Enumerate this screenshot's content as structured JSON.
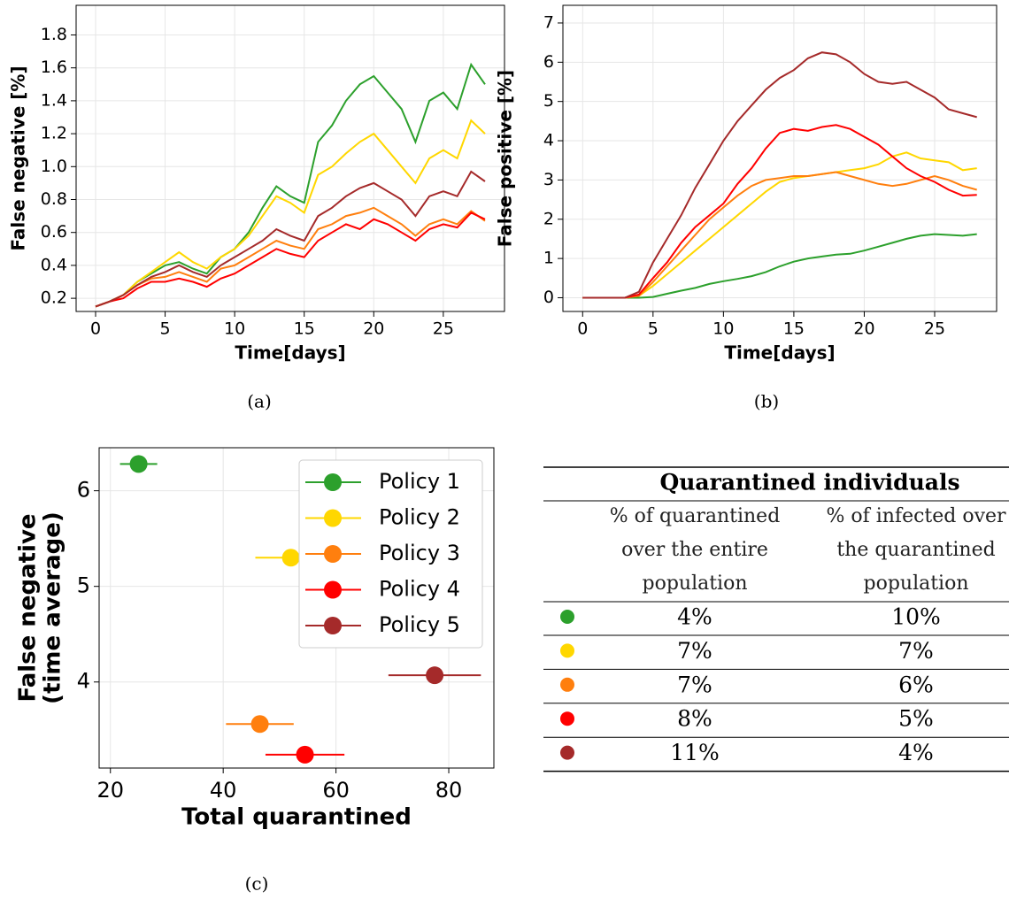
{
  "chart_data": [
    {
      "type": "line",
      "caption": "(a)",
      "xlabel": "Time[days]",
      "ylabel": "False negative [%]",
      "grid": true,
      "x": [
        0,
        1,
        2,
        3,
        4,
        5,
        6,
        7,
        8,
        9,
        10,
        11,
        12,
        13,
        14,
        15,
        16,
        17,
        18,
        19,
        20,
        21,
        22,
        23,
        24,
        25,
        26,
        27,
        28
      ],
      "xlim": [
        -1.4,
        29.4
      ],
      "xticks": [
        0,
        5,
        10,
        15,
        20,
        25
      ],
      "ylim": [
        0.12,
        1.98
      ],
      "yticks": [
        0.2,
        0.4,
        0.6,
        0.8,
        {
          "value": 1,
          "label": "1.0"
        },
        1.2,
        1.4,
        1.6,
        1.8
      ],
      "series": [
        {
          "color": "#2ca02c",
          "values": [
            0.15,
            0.18,
            0.22,
            0.3,
            0.35,
            0.4,
            0.42,
            0.38,
            0.35,
            0.45,
            0.5,
            0.6,
            0.75,
            0.88,
            0.82,
            0.78,
            1.15,
            1.25,
            1.4,
            1.5,
            1.55,
            1.45,
            1.35,
            1.15,
            1.4,
            1.45,
            1.35,
            1.62,
            1.5
          ]
        },
        {
          "color": "#ffd700",
          "values": [
            0.15,
            0.18,
            0.22,
            0.3,
            0.36,
            0.42,
            0.48,
            0.42,
            0.38,
            0.45,
            0.5,
            0.58,
            0.7,
            0.82,
            0.78,
            0.72,
            0.95,
            1.0,
            1.08,
            1.15,
            1.2,
            1.1,
            1.0,
            0.9,
            1.05,
            1.1,
            1.05,
            1.28,
            1.2
          ]
        },
        {
          "color": "#ff7f0e",
          "values": [
            0.15,
            0.18,
            0.22,
            0.28,
            0.32,
            0.33,
            0.36,
            0.33,
            0.3,
            0.38,
            0.4,
            0.45,
            0.5,
            0.55,
            0.52,
            0.5,
            0.62,
            0.65,
            0.7,
            0.72,
            0.75,
            0.7,
            0.65,
            0.58,
            0.65,
            0.68,
            0.65,
            0.73,
            0.67
          ]
        },
        {
          "color": "#ff0000",
          "values": [
            0.15,
            0.18,
            0.2,
            0.26,
            0.3,
            0.3,
            0.32,
            0.3,
            0.27,
            0.32,
            0.35,
            0.4,
            0.45,
            0.5,
            0.47,
            0.45,
            0.55,
            0.6,
            0.65,
            0.62,
            0.68,
            0.65,
            0.6,
            0.55,
            0.62,
            0.65,
            0.63,
            0.72,
            0.68
          ]
        },
        {
          "color": "#a52a2a",
          "values": [
            0.15,
            0.18,
            0.22,
            0.28,
            0.33,
            0.36,
            0.4,
            0.36,
            0.33,
            0.4,
            0.45,
            0.5,
            0.55,
            0.62,
            0.58,
            0.55,
            0.7,
            0.75,
            0.82,
            0.87,
            0.9,
            0.85,
            0.8,
            0.7,
            0.82,
            0.85,
            0.82,
            0.97,
            0.91
          ]
        }
      ]
    },
    {
      "type": "line",
      "caption": "(b)",
      "xlabel": "Time[days]",
      "ylabel": "False positive [%]",
      "grid": true,
      "x": [
        0,
        1,
        2,
        3,
        4,
        5,
        6,
        7,
        8,
        9,
        10,
        11,
        12,
        13,
        14,
        15,
        16,
        17,
        18,
        19,
        20,
        21,
        22,
        23,
        24,
        25,
        26,
        27,
        28
      ],
      "xlim": [
        -1.4,
        29.4
      ],
      "xticks": [
        0,
        5,
        10,
        15,
        20,
        25
      ],
      "ylim": [
        -0.35,
        7.45
      ],
      "yticks": [
        0,
        1,
        2,
        3,
        4,
        5,
        6,
        7
      ],
      "series": [
        {
          "color": "#2ca02c",
          "values": [
            0,
            0,
            0,
            0,
            0,
            0.02,
            0.1,
            0.18,
            0.25,
            0.35,
            0.42,
            0.48,
            0.55,
            0.65,
            0.8,
            0.92,
            1.0,
            1.05,
            1.1,
            1.12,
            1.2,
            1.3,
            1.4,
            1.5,
            1.58,
            1.62,
            1.6,
            1.58,
            1.62
          ]
        },
        {
          "color": "#ffd700",
          "values": [
            0,
            0,
            0,
            0,
            0.05,
            0.3,
            0.6,
            0.9,
            1.2,
            1.5,
            1.8,
            2.1,
            2.4,
            2.7,
            2.95,
            3.05,
            3.1,
            3.15,
            3.2,
            3.25,
            3.3,
            3.4,
            3.6,
            3.7,
            3.55,
            3.5,
            3.45,
            3.25,
            3.3
          ]
        },
        {
          "color": "#ff7f0e",
          "values": [
            0,
            0,
            0,
            0,
            0.05,
            0.4,
            0.8,
            1.2,
            1.6,
            2.0,
            2.3,
            2.6,
            2.85,
            3.0,
            3.05,
            3.1,
            3.1,
            3.15,
            3.2,
            3.1,
            3.0,
            2.9,
            2.85,
            2.9,
            3.0,
            3.1,
            3.0,
            2.85,
            2.75
          ]
        },
        {
          "color": "#ff0000",
          "values": [
            0,
            0,
            0,
            0,
            0.08,
            0.5,
            0.9,
            1.4,
            1.8,
            2.1,
            2.4,
            2.9,
            3.3,
            3.8,
            4.2,
            4.3,
            4.25,
            4.35,
            4.4,
            4.3,
            4.1,
            3.9,
            3.6,
            3.3,
            3.1,
            2.95,
            2.75,
            2.6,
            2.62
          ]
        },
        {
          "color": "#a52a2a",
          "values": [
            0,
            0,
            0,
            0,
            0.15,
            0.9,
            1.5,
            2.1,
            2.8,
            3.4,
            4.0,
            4.5,
            4.9,
            5.3,
            5.6,
            5.8,
            6.1,
            6.25,
            6.2,
            6.0,
            5.7,
            5.5,
            5.45,
            5.5,
            5.3,
            5.1,
            4.8,
            4.7,
            4.6
          ]
        }
      ]
    },
    {
      "type": "scatter",
      "caption": "(c)",
      "xlabel": "Total quarantined",
      "ylabel": [
        "False negative",
        "(time average)"
      ],
      "grid": true,
      "legend": "upper right",
      "xlim": [
        18,
        88
      ],
      "xticks": [
        20,
        40,
        60,
        80
      ],
      "ylim": [
        3.1,
        6.45
      ],
      "yticks": [
        4,
        5,
        6
      ],
      "series": [
        {
          "name": "Policy 1",
          "color": "#2ca02c",
          "x": [
            25
          ],
          "y": [
            6.28
          ],
          "xerr": [
            3.3
          ]
        },
        {
          "name": "Policy 2",
          "color": "#ffd700",
          "x": [
            52
          ],
          "y": [
            5.3
          ],
          "xerr": [
            6.3
          ]
        },
        {
          "name": "Policy 3",
          "color": "#ff7f0e",
          "x": [
            46.5
          ],
          "y": [
            3.56
          ],
          "xerr": [
            6
          ]
        },
        {
          "name": "Policy 4",
          "color": "#ff0000",
          "x": [
            54.5
          ],
          "y": [
            3.24
          ],
          "xerr": [
            7
          ]
        },
        {
          "name": "Policy 5",
          "color": "#a52a2a",
          "x": [
            77.5
          ],
          "y": [
            4.07
          ],
          "xerr": [
            8.2
          ]
        }
      ]
    }
  ],
  "table": {
    "title": "Quarantined individuals",
    "columns": [
      [
        "% of quarantined",
        "over the entire",
        "population"
      ],
      [
        "% of infected over",
        "the quarantined",
        "population"
      ]
    ],
    "rows": [
      {
        "color": "#2ca02c",
        "cells": [
          "4%",
          "10%"
        ]
      },
      {
        "color": "#ffd700",
        "cells": [
          "7%",
          "7%"
        ]
      },
      {
        "color": "#ff7f0e",
        "cells": [
          "7%",
          "6%"
        ]
      },
      {
        "color": "#ff0000",
        "cells": [
          "8%",
          "5%"
        ]
      },
      {
        "color": "#a52a2a",
        "cells": [
          "11%",
          "4%"
        ]
      }
    ]
  }
}
